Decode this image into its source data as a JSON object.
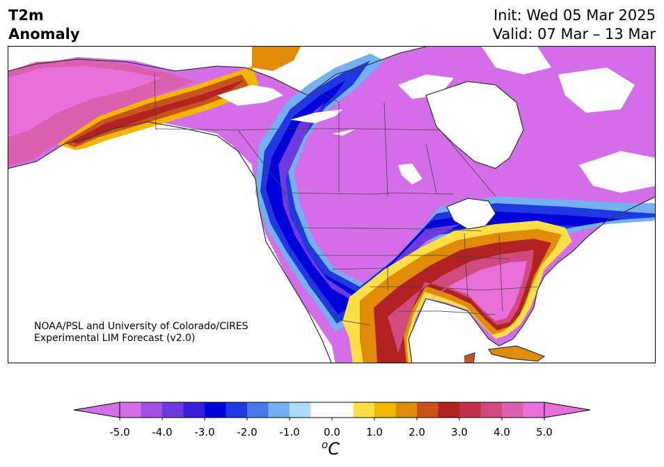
{
  "title": {
    "variable": "T2m",
    "field": "Anomaly"
  },
  "dates": {
    "init": "Init: Wed 05 Mar 2025",
    "valid": "Valid: 07 Mar – 13 Mar"
  },
  "credit": {
    "line1": "NOAA/PSL and University of Colorado/CIRES",
    "line2": "Experimental LIM Forecast (v2.0)"
  },
  "colorbar": {
    "unit_symbol": "o",
    "unit_letter": "C",
    "ticks": [
      "-5.0",
      "-4.0",
      "-3.0",
      "-2.0",
      "-1.0",
      "0.0",
      "1.0",
      "2.0",
      "3.0",
      "4.0",
      "5.0"
    ],
    "levels": [
      -5.0,
      -4.5,
      -4.0,
      -3.5,
      -3.0,
      -2.5,
      -2.0,
      -1.5,
      -1.0,
      -0.5,
      0.5,
      1.0,
      1.5,
      2.0,
      2.5,
      3.0,
      3.5,
      4.0,
      4.5,
      5.0
    ],
    "colors": [
      "#d46de8",
      "#a050e0",
      "#6e3ae0",
      "#3a20d8",
      "#0000d8",
      "#2038e0",
      "#4a78e8",
      "#74b0f0",
      "#acdcfc",
      "#ffffff",
      "#fde047",
      "#f2b705",
      "#e08c0a",
      "#c8541a",
      "#b22222",
      "#c0304a",
      "#d04a80",
      "#dc60b0",
      "#e870d8"
    ],
    "extend_low": "#d46de8",
    "extend_high": "#e870d8"
  }
}
